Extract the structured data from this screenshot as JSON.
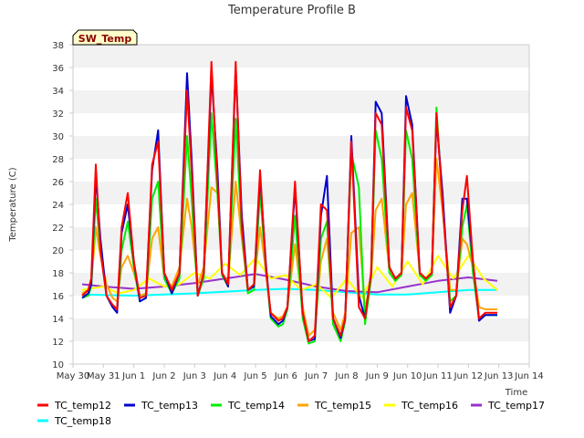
{
  "chart_data": {
    "type": "line",
    "title": "Temperature Profile B",
    "xlabel": "Time",
    "ylabel": "Temperature (C)",
    "badge": "SW_Temp",
    "xlim": [
      0,
      15
    ],
    "ylim": [
      10,
      38
    ],
    "x_ticks": [
      {
        "x": 0,
        "label": "May 30"
      },
      {
        "x": 1,
        "label": "May 31"
      },
      {
        "x": 2,
        "label": "Jun 1"
      },
      {
        "x": 3,
        "label": "Jun 2"
      },
      {
        "x": 4,
        "label": "Jun 3"
      },
      {
        "x": 5,
        "label": "Jun 4"
      },
      {
        "x": 6,
        "label": "Jun 5"
      },
      {
        "x": 7,
        "label": "Jun 6"
      },
      {
        "x": 8,
        "label": "Jun 7"
      },
      {
        "x": 9,
        "label": "Jun 8"
      },
      {
        "x": 10,
        "label": "Jun 9"
      },
      {
        "x": 11,
        "label": "Jun 10"
      },
      {
        "x": 12,
        "label": "Jun 11"
      },
      {
        "x": 13,
        "label": "Jun 12"
      },
      {
        "x": 14,
        "label": "Jun 13"
      },
      {
        "x": 15,
        "label": "Jun 14"
      }
    ],
    "y_ticks": [
      10,
      12,
      14,
      16,
      18,
      20,
      22,
      24,
      26,
      28,
      30,
      32,
      34,
      36,
      38
    ],
    "legend_position": "bottom",
    "grid_bands": true,
    "series": [
      {
        "name": "TC_temp12",
        "color": "#ff0000",
        "x": [
          0.3,
          0.5,
          0.6,
          0.75,
          0.9,
          1.1,
          1.3,
          1.45,
          1.6,
          1.8,
          2.0,
          2.2,
          2.4,
          2.6,
          2.8,
          3.0,
          3.25,
          3.5,
          3.75,
          3.9,
          4.1,
          4.3,
          4.55,
          4.75,
          4.9,
          5.1,
          5.35,
          5.55,
          5.75,
          5.95,
          6.15,
          6.35,
          6.5,
          6.75,
          6.9,
          7.05,
          7.3,
          7.55,
          7.75,
          7.95,
          8.15,
          8.35,
          8.55,
          8.8,
          8.95,
          9.15,
          9.4,
          9.6,
          9.8,
          9.95,
          10.15,
          10.4,
          10.6,
          10.8,
          10.95,
          11.15,
          11.4,
          11.6,
          11.8,
          11.95,
          12.15,
          12.4,
          12.6,
          12.8,
          12.95,
          13.15,
          13.35,
          13.55,
          13.8,
          13.95
        ],
        "y": [
          16.0,
          16.5,
          17.5,
          27.5,
          20.0,
          16.0,
          15.2,
          14.8,
          22.0,
          25.0,
          19.0,
          15.8,
          16.0,
          27.5,
          29.5,
          18.0,
          16.5,
          18.0,
          34.0,
          27.0,
          16.0,
          18.0,
          36.5,
          26.0,
          18.0,
          17.0,
          36.5,
          22.0,
          16.5,
          17.0,
          27.0,
          18.0,
          14.5,
          13.8,
          14.0,
          15.0,
          26.0,
          14.5,
          12.0,
          12.5,
          24.0,
          23.5,
          14.0,
          12.5,
          14.0,
          29.5,
          15.0,
          14.0,
          18.0,
          32.0,
          31.0,
          18.5,
          17.5,
          18.0,
          32.5,
          30.5,
          18.0,
          17.5,
          18.0,
          32.0,
          24.0,
          15.0,
          16.0,
          23.5,
          26.5,
          19.0,
          14.0,
          14.5,
          14.5,
          14.5
        ]
      },
      {
        "name": "TC_temp13",
        "color": "#0000cc",
        "x": [
          0.3,
          0.5,
          0.6,
          0.75,
          0.9,
          1.1,
          1.3,
          1.45,
          1.6,
          1.8,
          2.0,
          2.2,
          2.4,
          2.6,
          2.8,
          3.0,
          3.25,
          3.5,
          3.75,
          3.9,
          4.1,
          4.3,
          4.55,
          4.75,
          4.9,
          5.1,
          5.35,
          5.55,
          5.75,
          5.95,
          6.15,
          6.35,
          6.5,
          6.75,
          6.9,
          7.05,
          7.3,
          7.55,
          7.75,
          7.95,
          8.15,
          8.35,
          8.55,
          8.8,
          8.95,
          9.15,
          9.4,
          9.6,
          9.8,
          9.95,
          10.15,
          10.4,
          10.6,
          10.8,
          10.95,
          11.15,
          11.4,
          11.6,
          11.8,
          11.95,
          12.15,
          12.4,
          12.6,
          12.8,
          12.95,
          13.15,
          13.35,
          13.55,
          13.8,
          13.95
        ],
        "y": [
          15.8,
          16.2,
          17.0,
          26.5,
          21.0,
          16.0,
          15.0,
          14.5,
          21.5,
          24.0,
          19.0,
          15.5,
          15.8,
          27.0,
          30.5,
          18.0,
          16.2,
          18.0,
          35.5,
          28.0,
          16.0,
          18.0,
          35.5,
          27.0,
          18.0,
          16.8,
          36.0,
          23.0,
          16.5,
          16.8,
          26.5,
          18.5,
          14.2,
          13.5,
          13.8,
          15.0,
          25.5,
          14.5,
          12.0,
          12.2,
          23.0,
          26.5,
          14.0,
          12.3,
          14.0,
          30.0,
          16.0,
          14.0,
          18.0,
          33.0,
          32.0,
          18.5,
          17.5,
          18.0,
          33.5,
          31.0,
          18.0,
          17.5,
          18.0,
          31.5,
          25.0,
          14.5,
          16.0,
          24.5,
          24.5,
          19.0,
          13.8,
          14.3,
          14.3,
          14.3
        ]
      },
      {
        "name": "TC_temp14",
        "color": "#00ee00",
        "x": [
          0.3,
          0.5,
          0.6,
          0.75,
          0.9,
          1.1,
          1.3,
          1.45,
          1.6,
          1.8,
          2.0,
          2.2,
          2.4,
          2.6,
          2.8,
          3.0,
          3.25,
          3.5,
          3.75,
          3.9,
          4.1,
          4.3,
          4.55,
          4.75,
          4.9,
          5.1,
          5.35,
          5.55,
          5.75,
          5.95,
          6.15,
          6.35,
          6.5,
          6.75,
          6.9,
          7.05,
          7.3,
          7.55,
          7.75,
          7.95,
          8.15,
          8.35,
          8.55,
          8.8,
          8.95,
          9.15,
          9.4,
          9.6,
          9.8,
          9.95,
          10.15,
          10.4,
          10.6,
          10.8,
          10.95,
          11.15,
          11.4,
          11.6,
          11.8,
          11.95,
          12.15,
          12.4,
          12.6,
          12.8,
          12.95,
          13.15,
          13.35,
          13.55,
          13.8,
          13.95
        ],
        "y": [
          15.8,
          16.0,
          16.8,
          24.5,
          20.0,
          16.0,
          15.2,
          14.8,
          20.0,
          22.5,
          18.5,
          15.5,
          15.8,
          24.5,
          26.0,
          17.5,
          16.2,
          17.5,
          30.0,
          24.5,
          16.0,
          17.5,
          32.0,
          25.0,
          17.8,
          16.8,
          31.5,
          21.5,
          16.2,
          16.5,
          25.0,
          18.0,
          14.0,
          13.3,
          13.5,
          14.8,
          23.0,
          14.0,
          11.8,
          12.0,
          21.0,
          22.5,
          13.5,
          12.0,
          13.8,
          28.5,
          25.5,
          13.5,
          17.5,
          30.5,
          28.0,
          18.0,
          17.3,
          17.8,
          30.5,
          28.0,
          17.8,
          17.3,
          17.8,
          32.5,
          24.0,
          15.5,
          16.0,
          22.0,
          24.0,
          18.0,
          14.0,
          14.3,
          14.3,
          14.3
        ]
      },
      {
        "name": "TC_temp15",
        "color": "#ffa500",
        "x": [
          0.3,
          0.5,
          0.6,
          0.75,
          0.9,
          1.1,
          1.3,
          1.45,
          1.6,
          1.8,
          2.0,
          2.2,
          2.4,
          2.6,
          2.8,
          3.0,
          3.25,
          3.5,
          3.75,
          3.9,
          4.1,
          4.3,
          4.55,
          4.75,
          4.9,
          5.1,
          5.35,
          5.55,
          5.75,
          5.95,
          6.15,
          6.35,
          6.5,
          6.75,
          6.9,
          7.05,
          7.3,
          7.55,
          7.75,
          7.95,
          8.15,
          8.35,
          8.55,
          8.8,
          8.95,
          9.15,
          9.4,
          9.6,
          9.8,
          9.95,
          10.15,
          10.4,
          10.6,
          10.8,
          10.95,
          11.15,
          11.4,
          11.6,
          11.8,
          11.95,
          12.15,
          12.4,
          12.6,
          12.8,
          12.95,
          13.15,
          13.35,
          13.55,
          13.8,
          13.95
        ],
        "y": [
          16.2,
          16.5,
          17.0,
          22.0,
          19.5,
          17.0,
          15.8,
          15.5,
          18.5,
          19.5,
          18.0,
          16.0,
          16.2,
          21.0,
          22.0,
          17.5,
          16.8,
          18.5,
          24.5,
          22.0,
          17.0,
          18.5,
          25.5,
          25.0,
          18.0,
          17.2,
          26.0,
          21.0,
          16.5,
          16.8,
          22.0,
          18.0,
          14.5,
          14.0,
          14.2,
          15.0,
          20.5,
          15.0,
          12.5,
          13.0,
          19.0,
          21.0,
          14.5,
          13.0,
          14.5,
          21.5,
          22.0,
          14.8,
          17.5,
          23.5,
          24.5,
          18.2,
          17.5,
          17.8,
          24.0,
          25.0,
          18.0,
          17.5,
          17.8,
          28.0,
          23.5,
          16.5,
          16.5,
          21.0,
          20.5,
          18.5,
          15.0,
          14.8,
          14.8,
          14.8
        ]
      },
      {
        "name": "TC_temp16",
        "color": "#ffff00",
        "x": [
          0.3,
          1.0,
          1.5,
          2.0,
          2.5,
          3.0,
          3.5,
          4.0,
          4.5,
          5.0,
          5.5,
          6.0,
          6.5,
          7.0,
          7.5,
          8.0,
          8.5,
          9.0,
          9.5,
          10.0,
          10.5,
          11.0,
          11.5,
          12.0,
          12.5,
          13.0,
          13.5,
          13.95
        ],
        "y": [
          16.5,
          16.8,
          16.2,
          16.5,
          17.5,
          16.8,
          17.0,
          18.0,
          17.5,
          18.8,
          17.8,
          19.3,
          17.5,
          17.8,
          16.5,
          17.0,
          15.8,
          17.5,
          15.8,
          18.5,
          16.8,
          19.0,
          17.0,
          19.5,
          17.5,
          19.5,
          17.5,
          16.5
        ]
      },
      {
        "name": "TC_temp17",
        "color": "#9932cc",
        "x": [
          0.3,
          1.0,
          2.0,
          3.0,
          4.0,
          5.0,
          6.0,
          7.0,
          8.0,
          9.0,
          10.0,
          11.0,
          12.0,
          13.0,
          13.95
        ],
        "y": [
          17.0,
          16.8,
          16.6,
          16.8,
          17.1,
          17.5,
          17.9,
          17.4,
          16.8,
          16.4,
          16.3,
          16.8,
          17.3,
          17.6,
          17.3
        ]
      },
      {
        "name": "TC_temp18",
        "color": "#00ffff",
        "x": [
          0.3,
          2.0,
          4.0,
          6.0,
          7.0,
          8.0,
          9.0,
          10.0,
          11.0,
          12.0,
          13.0,
          13.95
        ],
        "y": [
          16.1,
          16.0,
          16.2,
          16.5,
          16.6,
          16.5,
          16.3,
          16.1,
          16.1,
          16.3,
          16.5,
          16.5
        ]
      }
    ]
  }
}
